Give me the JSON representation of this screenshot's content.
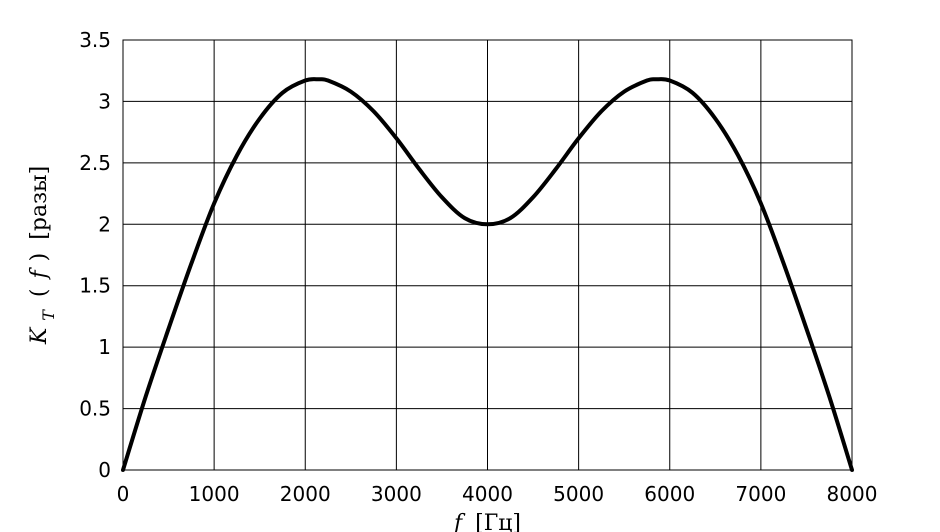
{
  "chart_data": {
    "type": "line",
    "xlabel": {
      "var": "f",
      "unit": "[Гц]"
    },
    "ylabel": {
      "var": "K",
      "sub": "T",
      "arg_open": "(",
      "arg": "f",
      "arg_close": ")",
      "unit": "[разы]"
    },
    "xlim": [
      0,
      8000
    ],
    "ylim": [
      0,
      3.5
    ],
    "x_ticks": [
      0,
      1000,
      2000,
      3000,
      4000,
      5000,
      6000,
      7000,
      8000
    ],
    "x_tick_labels": [
      "0",
      "1000",
      "2000",
      "3000",
      "4000",
      "5000",
      "6000",
      "7000",
      "8000"
    ],
    "y_ticks": [
      0,
      0.5,
      1,
      1.5,
      2,
      2.5,
      3,
      3.5
    ],
    "y_tick_labels": [
      "0",
      "0.5",
      "1",
      "1.5",
      "2",
      "2.5",
      "3",
      "3.5"
    ],
    "grid": true,
    "series": [
      {
        "color": "#000000",
        "x": [
          0,
          250,
          500,
          750,
          1000,
          1250,
          1500,
          1750,
          2000,
          2150,
          2250,
          2500,
          2750,
          3000,
          3250,
          3500,
          3750,
          4000,
          4250,
          4500,
          4750,
          5000,
          5250,
          5500,
          5750,
          5850,
          6000,
          6250,
          6500,
          6750,
          7000,
          7250,
          7500,
          7750,
          8000
        ],
        "y": [
          0,
          0.6,
          1.15,
          1.68,
          2.17,
          2.56,
          2.86,
          3.07,
          3.17,
          3.18,
          3.17,
          3.08,
          2.92,
          2.7,
          2.45,
          2.22,
          2.05,
          2.0,
          2.05,
          2.22,
          2.45,
          2.7,
          2.92,
          3.08,
          3.17,
          3.18,
          3.17,
          3.07,
          2.86,
          2.56,
          2.17,
          1.68,
          1.15,
          0.6,
          0
        ]
      }
    ]
  }
}
